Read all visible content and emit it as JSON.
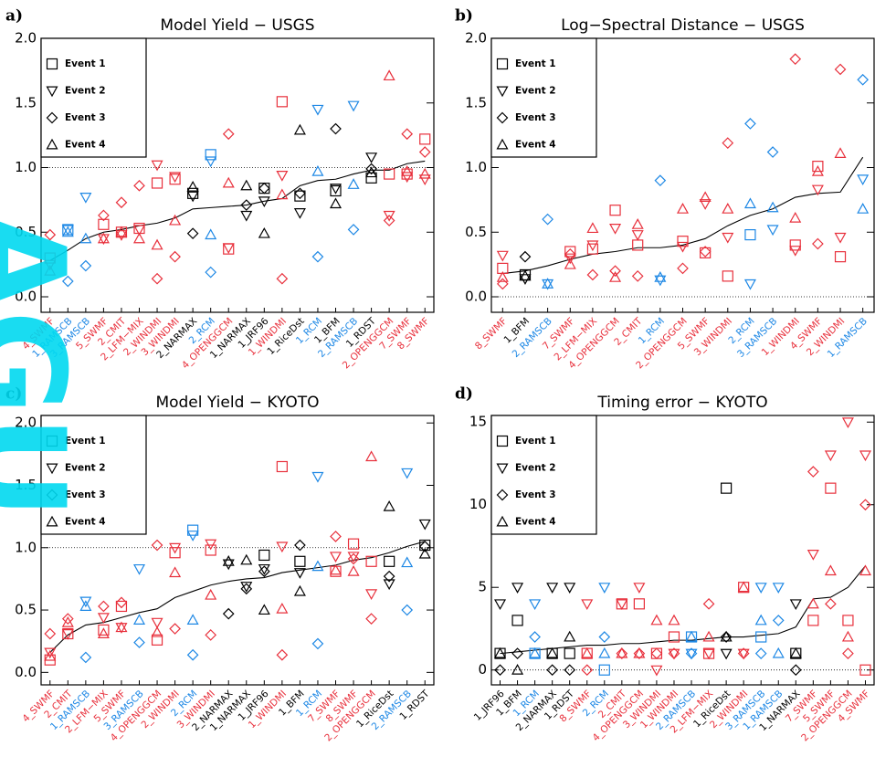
{
  "watermark": "AGU",
  "chart_data": [
    {
      "type": "scatter",
      "panel_label": "a)",
      "title": "Model Yield − USGS",
      "categories": [
        "4_SWMF",
        "1_RAMSCB",
        "3_RAMSCB",
        "5_SWMF",
        "2_CMIT",
        "2_LFM−MIX",
        "2_WINDMI",
        "3_WINDMI",
        "2_NARMAX",
        "2_RCM",
        "4_OPENGGCM",
        "1_NARMAX",
        "1_JRF96",
        "1_WINDMI",
        "1_RiceDst",
        "1_RCM",
        "1_BFM",
        "2_RAMSCB",
        "1_RDST",
        "2_OPENGGCM",
        "7_SWMF",
        "8_SWMF"
      ],
      "category_colors": [
        "#e8303c",
        "#1e88e5",
        "#1e88e5",
        "#e8303c",
        "#e8303c",
        "#e8303c",
        "#e8303c",
        "#e8303c",
        "#000000",
        "#1e88e5",
        "#e8303c",
        "#000000",
        "#000000",
        "#e8303c",
        "#000000",
        "#1e88e5",
        "#000000",
        "#1e88e5",
        "#000000",
        "#e8303c",
        "#e8303c",
        "#e8303c"
      ],
      "series": [
        {
          "name": "Event 1",
          "marker": "square",
          "values": [
            0.3,
            0.52,
            null,
            0.56,
            0.5,
            0.53,
            0.88,
            0.91,
            0.8,
            1.1,
            0.37,
            null,
            0.84,
            1.51,
            0.78,
            null,
            0.82,
            null,
            0.92,
            0.95,
            0.95,
            1.22
          ]
        },
        {
          "name": "Event 2",
          "marker": "triangle-down",
          "values": [
            0.25,
            0.52,
            0.77,
            0.45,
            0.48,
            0.52,
            1.02,
            0.93,
            0.78,
            1.05,
            0.38,
            0.63,
            0.74,
            0.94,
            0.65,
            1.45,
            0.84,
            1.48,
            1.08,
            0.63,
            0.93,
            0.91
          ]
        },
        {
          "name": "Event 3",
          "marker": "diamond",
          "values": [
            0.48,
            0.12,
            0.24,
            0.63,
            0.73,
            0.86,
            0.14,
            0.31,
            0.49,
            0.19,
            1.26,
            0.71,
            0.84,
            0.14,
            0.8,
            0.31,
            1.3,
            0.52,
            0.99,
            0.59,
            1.26,
            1.12
          ]
        },
        {
          "name": "Event 4",
          "marker": "triangle-up",
          "values": [
            0.2,
            0.5,
            0.45,
            0.45,
            0.5,
            0.45,
            0.4,
            0.59,
            0.85,
            0.48,
            0.88,
            0.86,
            0.49,
            0.79,
            1.29,
            0.97,
            0.72,
            0.87,
            0.96,
            1.71,
            0.97,
            0.95
          ]
        }
      ],
      "trend_values": [
        0.28,
        0.36,
        0.45,
        0.5,
        0.52,
        0.55,
        0.57,
        0.61,
        0.68,
        0.69,
        0.7,
        0.71,
        0.74,
        0.76,
        0.86,
        0.9,
        0.91,
        0.95,
        0.98,
        0.98,
        1.03,
        1.05
      ],
      "ref_line": 1,
      "ylim": [
        -0.12,
        2.0
      ],
      "yticks": [
        {
          "value": 0,
          "label": "0.0"
        },
        {
          "value": 0.5,
          "label": "0.5"
        },
        {
          "value": 1,
          "label": "1.0"
        },
        {
          "value": 1.5,
          "label": "1.5"
        },
        {
          "value": 2,
          "label": "2.0"
        }
      ]
    },
    {
      "type": "scatter",
      "panel_label": "b)",
      "title": "Log−Spectral Distance − USGS",
      "categories": [
        "8_SWMF",
        "1_BFM",
        "2_RAMSCB",
        "7_SWMF",
        "2_LFM−MIX",
        "4_OPENGGCM",
        "2_CMIT",
        "1_RCM",
        "2_OPENGGCM",
        "5_SWMF",
        "3_WINDMI",
        "2_RCM",
        "3_RAMSCB",
        "1_WINDMI",
        "4_SWMF",
        "2_WINDMI",
        "1_RAMSCB"
      ],
      "category_colors": [
        "#e8303c",
        "#000000",
        "#1e88e5",
        "#e8303c",
        "#e8303c",
        "#e8303c",
        "#e8303c",
        "#1e88e5",
        "#e8303c",
        "#e8303c",
        "#e8303c",
        "#1e88e5",
        "#1e88e5",
        "#e8303c",
        "#e8303c",
        "#e8303c",
        "#1e88e5"
      ],
      "series": [
        {
          "name": "Event 1",
          "marker": "square",
          "values": [
            0.22,
            0.17,
            null,
            0.35,
            0.37,
            0.67,
            0.4,
            null,
            0.43,
            0.34,
            0.16,
            0.48,
            null,
            0.4,
            1.01,
            0.31,
            null
          ]
        },
        {
          "name": "Event 2",
          "marker": "triangle-down",
          "values": [
            0.32,
            0.14,
            0.1,
            0.3,
            0.4,
            0.53,
            0.48,
            0.13,
            0.39,
            0.72,
            0.46,
            0.1,
            0.52,
            0.36,
            0.83,
            0.46,
            0.91
          ]
        },
        {
          "name": "Event 3",
          "marker": "diamond",
          "values": [
            0.1,
            0.31,
            0.6,
            0.33,
            0.17,
            0.2,
            0.16,
            0.9,
            0.22,
            0.35,
            1.19,
            1.34,
            1.12,
            1.84,
            0.41,
            1.76,
            1.68
          ]
        },
        {
          "name": "Event 4",
          "marker": "triangle-up",
          "values": [
            0.15,
            0.16,
            0.1,
            0.25,
            0.53,
            0.15,
            0.56,
            0.15,
            0.68,
            0.77,
            0.68,
            0.72,
            0.69,
            0.61,
            0.97,
            1.11,
            0.68
          ]
        }
      ],
      "trend_values": [
        0.18,
        0.2,
        0.24,
        0.29,
        0.33,
        0.35,
        0.38,
        0.38,
        0.4,
        0.45,
        0.55,
        0.63,
        0.68,
        0.77,
        0.8,
        0.81,
        1.08
      ],
      "ref_line": 0,
      "ylim": [
        -0.12,
        2.0
      ],
      "yticks": [
        {
          "value": 0,
          "label": "0.0"
        },
        {
          "value": 0.5,
          "label": "0.5"
        },
        {
          "value": 1,
          "label": "1.0"
        },
        {
          "value": 1.5,
          "label": "1.5"
        },
        {
          "value": 2,
          "label": "2.0"
        }
      ]
    },
    {
      "type": "scatter",
      "panel_label": "c)",
      "title": "Model Yield − KYOTO",
      "categories": [
        "4_SWMF",
        "2_CMIT",
        "1_RAMSCB",
        "2_LFM−MIX",
        "5_SWMF",
        "3_RAMSCB",
        "4_OPENGGCM",
        "2_WINDMI",
        "2_RCM",
        "3_WINDMI",
        "2_NARMAX",
        "1_NARMAX",
        "1_JRF96",
        "1_WINDMI",
        "1_BFM",
        "1_RCM",
        "7_SWMF",
        "8_SWMF",
        "2_OPENGGCM",
        "1_RiceDst",
        "2_RAMSCB",
        "1_RDST"
      ],
      "category_colors": [
        "#e8303c",
        "#e8303c",
        "#1e88e5",
        "#e8303c",
        "#e8303c",
        "#1e88e5",
        "#e8303c",
        "#e8303c",
        "#1e88e5",
        "#e8303c",
        "#000000",
        "#000000",
        "#000000",
        "#e8303c",
        "#000000",
        "#1e88e5",
        "#e8303c",
        "#e8303c",
        "#e8303c",
        "#000000",
        "#1e88e5",
        "#000000"
      ],
      "series": [
        {
          "name": "Event 1",
          "marker": "square",
          "values": [
            0.1,
            0.31,
            null,
            0.34,
            0.53,
            null,
            0.26,
            0.96,
            1.14,
            0.98,
            null,
            null,
            0.94,
            1.65,
            0.89,
            null,
            0.81,
            1.03,
            0.89,
            0.89,
            null,
            1.02
          ]
        },
        {
          "name": "Event 2",
          "marker": "triangle-down",
          "values": [
            0.16,
            0.31,
            0.57,
            0.44,
            0.36,
            0.83,
            0.4,
            1.0,
            1.1,
            1.03,
            0.87,
            0.69,
            0.83,
            1.01,
            0.8,
            1.57,
            0.93,
            0.93,
            0.63,
            0.71,
            1.6,
            1.19
          ]
        },
        {
          "name": "Event 3",
          "marker": "diamond",
          "values": [
            0.31,
            0.43,
            0.12,
            0.53,
            0.56,
            0.24,
            1.02,
            0.35,
            0.14,
            0.3,
            0.47,
            0.67,
            0.81,
            0.14,
            1.02,
            0.23,
            1.09,
            0.91,
            0.43,
            0.77,
            0.5,
            1.01
          ]
        },
        {
          "name": "Event 4",
          "marker": "triangle-up",
          "values": [
            0.13,
            0.4,
            0.53,
            0.31,
            0.36,
            0.42,
            0.32,
            0.8,
            0.42,
            0.62,
            0.89,
            0.9,
            0.5,
            0.51,
            0.65,
            0.85,
            0.82,
            0.81,
            1.73,
            1.33,
            0.88,
            0.95
          ]
        }
      ],
      "trend_values": [
        0.16,
        0.3,
        0.38,
        0.4,
        0.44,
        0.48,
        0.51,
        0.6,
        0.65,
        0.7,
        0.73,
        0.75,
        0.76,
        0.8,
        0.82,
        0.84,
        0.86,
        0.9,
        0.92,
        0.96,
        1.01,
        1.05
      ],
      "ref_line": 1,
      "ylim": [
        -0.1,
        2.06
      ],
      "yticks": [
        {
          "value": 0,
          "label": "0.0"
        },
        {
          "value": 0.5,
          "label": "0.5"
        },
        {
          "value": 1,
          "label": "1.0"
        },
        {
          "value": 1.5,
          "label": "1.5"
        },
        {
          "value": 2,
          "label": "2.0"
        }
      ]
    },
    {
      "type": "scatter",
      "panel_label": "d)",
      "title": "Timing error − KYOTO",
      "categories": [
        "1_JRF96",
        "1_BFM",
        "1_RCM",
        "2_NARMAX",
        "1_RDST",
        "8_SWMF",
        "2_RCM",
        "2_CMIT",
        "4_OPENGGCM",
        "3_WINDMI",
        "1_WINDMI",
        "2_RAMSCB",
        "2_LFM−MIX",
        "1_RiceDst",
        "2_WINDMI",
        "3_RAMSCB",
        "1_RAMSCB",
        "1_NARMAX",
        "7_SWMF",
        "5_SWMF",
        "2_OPENGGCM",
        "4_SWMF"
      ],
      "category_colors": [
        "#000000",
        "#000000",
        "#1e88e5",
        "#000000",
        "#000000",
        "#e8303c",
        "#1e88e5",
        "#e8303c",
        "#e8303c",
        "#e8303c",
        "#e8303c",
        "#1e88e5",
        "#e8303c",
        "#000000",
        "#e8303c",
        "#1e88e5",
        "#1e88e5",
        "#000000",
        "#e8303c",
        "#e8303c",
        "#e8303c",
        "#e8303c"
      ],
      "series": [
        {
          "name": "Event 1",
          "marker": "square",
          "values": [
            1,
            3,
            1,
            1,
            1,
            1,
            0,
            4,
            4,
            1,
            2,
            2,
            1,
            11,
            5,
            2,
            null,
            1,
            3,
            11,
            3,
            0
          ]
        },
        {
          "name": "Event 2",
          "marker": "triangle-down",
          "values": [
            4,
            5,
            4,
            5,
            5,
            4,
            5,
            4,
            5,
            0,
            1,
            1,
            1,
            1,
            1,
            5,
            5,
            4,
            7,
            13,
            15,
            13
          ]
        },
        {
          "name": "Event 3",
          "marker": "diamond",
          "values": [
            0,
            1,
            2,
            0,
            0,
            0,
            2,
            1,
            1,
            1,
            1,
            1,
            4,
            2,
            1,
            1,
            3,
            0,
            12,
            4,
            1,
            10
          ]
        },
        {
          "name": "Event 4",
          "marker": "triangle-up",
          "values": [
            1,
            0,
            1,
            1,
            2,
            1,
            1,
            1,
            1,
            3,
            3,
            2,
            2,
            2,
            5,
            3,
            1,
            1,
            4,
            6,
            2,
            6
          ]
        }
      ],
      "trend_values": [
        1,
        1.1,
        1.2,
        1.3,
        1.4,
        1.5,
        1.5,
        1.6,
        1.6,
        1.7,
        1.8,
        1.8,
        1.9,
        2.0,
        2.0,
        2.1,
        2.2,
        2.6,
        4.3,
        4.4,
        5,
        6.3
      ],
      "ref_line": 0,
      "ylim": [
        -0.9,
        15.4
      ],
      "yticks": [
        0,
        5,
        10,
        15
      ]
    }
  ]
}
